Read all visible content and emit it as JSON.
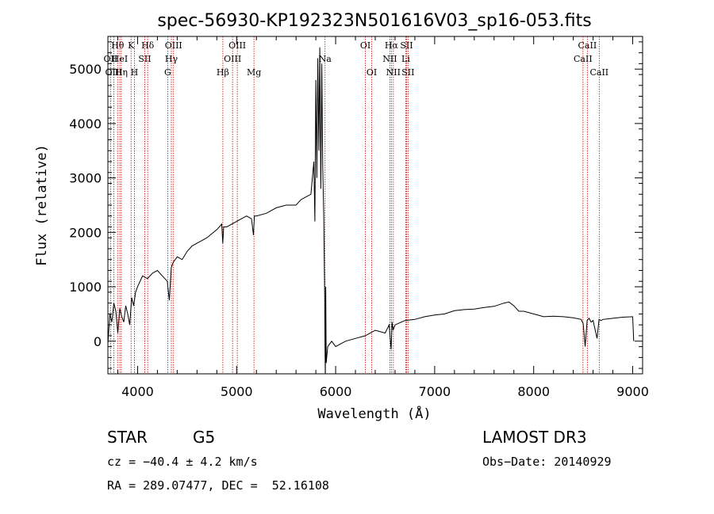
{
  "chart_data": {
    "type": "line",
    "title": "spec-56930-KP192323N501616V03_sp16-053.fits",
    "xlabel": "Wavelength (Å)",
    "ylabel": "Flux (relative)",
    "xlim": [
      3700,
      9100
    ],
    "ylim": [
      -600,
      5600
    ],
    "xticks": [
      4000,
      5000,
      6000,
      7000,
      8000,
      9000
    ],
    "yticks": [
      0,
      1000,
      2000,
      3000,
      4000,
      5000
    ],
    "series": [
      {
        "name": "spectrum",
        "x": [
          3700,
          3720,
          3740,
          3760,
          3780,
          3800,
          3820,
          3840,
          3860,
          3880,
          3900,
          3920,
          3940,
          3960,
          3980,
          4000,
          4050,
          4100,
          4150,
          4200,
          4250,
          4300,
          4320,
          4340,
          4360,
          4400,
          4450,
          4500,
          4550,
          4600,
          4700,
          4800,
          4850,
          4860,
          4870,
          4900,
          5000,
          5100,
          5150,
          5170,
          5180,
          5200,
          5300,
          5400,
          5500,
          5600,
          5650,
          5700,
          5750,
          5780,
          5790,
          5800,
          5810,
          5820,
          5830,
          5840,
          5850,
          5860,
          5870,
          5880,
          5885,
          5890,
          5893,
          5896,
          5900,
          5905,
          5910,
          5920,
          5940,
          5960,
          6000,
          6100,
          6200,
          6300,
          6400,
          6500,
          6540,
          6560,
          6570,
          6580,
          6600,
          6700,
          6800,
          6900,
          7000,
          7100,
          7200,
          7300,
          7400,
          7500,
          7600,
          7700,
          7750,
          7800,
          7850,
          7900,
          8000,
          8100,
          8200,
          8300,
          8400,
          8480,
          8500,
          8520,
          8540,
          8560,
          8580,
          8600,
          8640,
          8660,
          8680,
          8700,
          8800,
          8900,
          9000,
          9010
        ],
        "y": [
          -50,
          500,
          350,
          700,
          550,
          150,
          600,
          450,
          350,
          650,
          500,
          300,
          800,
          650,
          900,
          1000,
          1200,
          1150,
          1250,
          1300,
          1200,
          1100,
          750,
          1350,
          1450,
          1550,
          1500,
          1650,
          1750,
          1800,
          1900,
          2050,
          2150,
          1800,
          2100,
          2100,
          2200,
          2300,
          2250,
          1950,
          2300,
          2300,
          2350,
          2450,
          2500,
          2500,
          2600,
          2650,
          2700,
          3300,
          2200,
          4800,
          3000,
          5200,
          3500,
          5400,
          2800,
          5100,
          3200,
          2300,
          1500,
          800,
          -100,
          -600,
          1000,
          -400,
          -300,
          -100,
          -50,
          0,
          -100,
          0,
          50,
          100,
          200,
          150,
          300,
          -150,
          350,
          200,
          300,
          380,
          400,
          450,
          480,
          500,
          560,
          580,
          590,
          620,
          640,
          700,
          720,
          650,
          550,
          550,
          500,
          450,
          460,
          450,
          430,
          400,
          320,
          -100,
          380,
          420,
          350,
          380,
          50,
          400,
          380,
          400,
          420,
          440,
          450,
          0
        ],
        "color": "#000000"
      }
    ],
    "annotations": [
      {
        "label": "Hθ",
        "x": 3798,
        "row": 1
      },
      {
        "label": "OII",
        "x": 3727,
        "row": 2
      },
      {
        "label": "Hη",
        "x": 3835,
        "row": 3
      },
      {
        "label": "OIII",
        "x": 3760,
        "row": 3
      },
      {
        "label": "HeI",
        "x": 3820,
        "row": 2
      },
      {
        "label": "K",
        "x": 3934,
        "row": 1
      },
      {
        "label": "H",
        "x": 3968,
        "row": 3
      },
      {
        "label": "SII",
        "x": 4072,
        "row": 2
      },
      {
        "label": "Hδ",
        "x": 4102,
        "row": 1
      },
      {
        "label": "OIII",
        "x": 4363,
        "row": 1
      },
      {
        "label": "Hγ",
        "x": 4341,
        "row": 2
      },
      {
        "label": "G",
        "x": 4304,
        "row": 3
      },
      {
        "label": "Hβ",
        "x": 4861,
        "row": 3
      },
      {
        "label": "OIII",
        "x": 4959,
        "row": 2
      },
      {
        "label": "OIII",
        "x": 5007,
        "row": 1
      },
      {
        "label": "Mg",
        "x": 5175,
        "row": 3
      },
      {
        "label": "Na",
        "x": 5893,
        "row": 2
      },
      {
        "label": "OI",
        "x": 6300,
        "row": 1
      },
      {
        "label": "OI",
        "x": 6364,
        "row": 3
      },
      {
        "label": "Hα",
        "x": 6563,
        "row": 1
      },
      {
        "label": "NII",
        "x": 6548,
        "row": 2
      },
      {
        "label": "NII",
        "x": 6583,
        "row": 3
      },
      {
        "label": "SII",
        "x": 6716,
        "row": 1
      },
      {
        "label": "Li",
        "x": 6708,
        "row": 2
      },
      {
        "label": "SII",
        "x": 6731,
        "row": 3
      },
      {
        "label": "CaII",
        "x": 8542,
        "row": 1
      },
      {
        "label": "CaII",
        "x": 8498,
        "row": 2
      },
      {
        "label": "CaII",
        "x": 8662,
        "row": 3
      }
    ],
    "annotation_color": "#cc0000"
  },
  "info": {
    "class": "STAR",
    "subclass": "G5",
    "survey": "LAMOST DR3",
    "cz": "cz = −40.4 ± 4.2 km/s",
    "obs_date": "Obs−Date: 20140929",
    "coords": "RA = 289.07477, DEC =  52.16108"
  }
}
